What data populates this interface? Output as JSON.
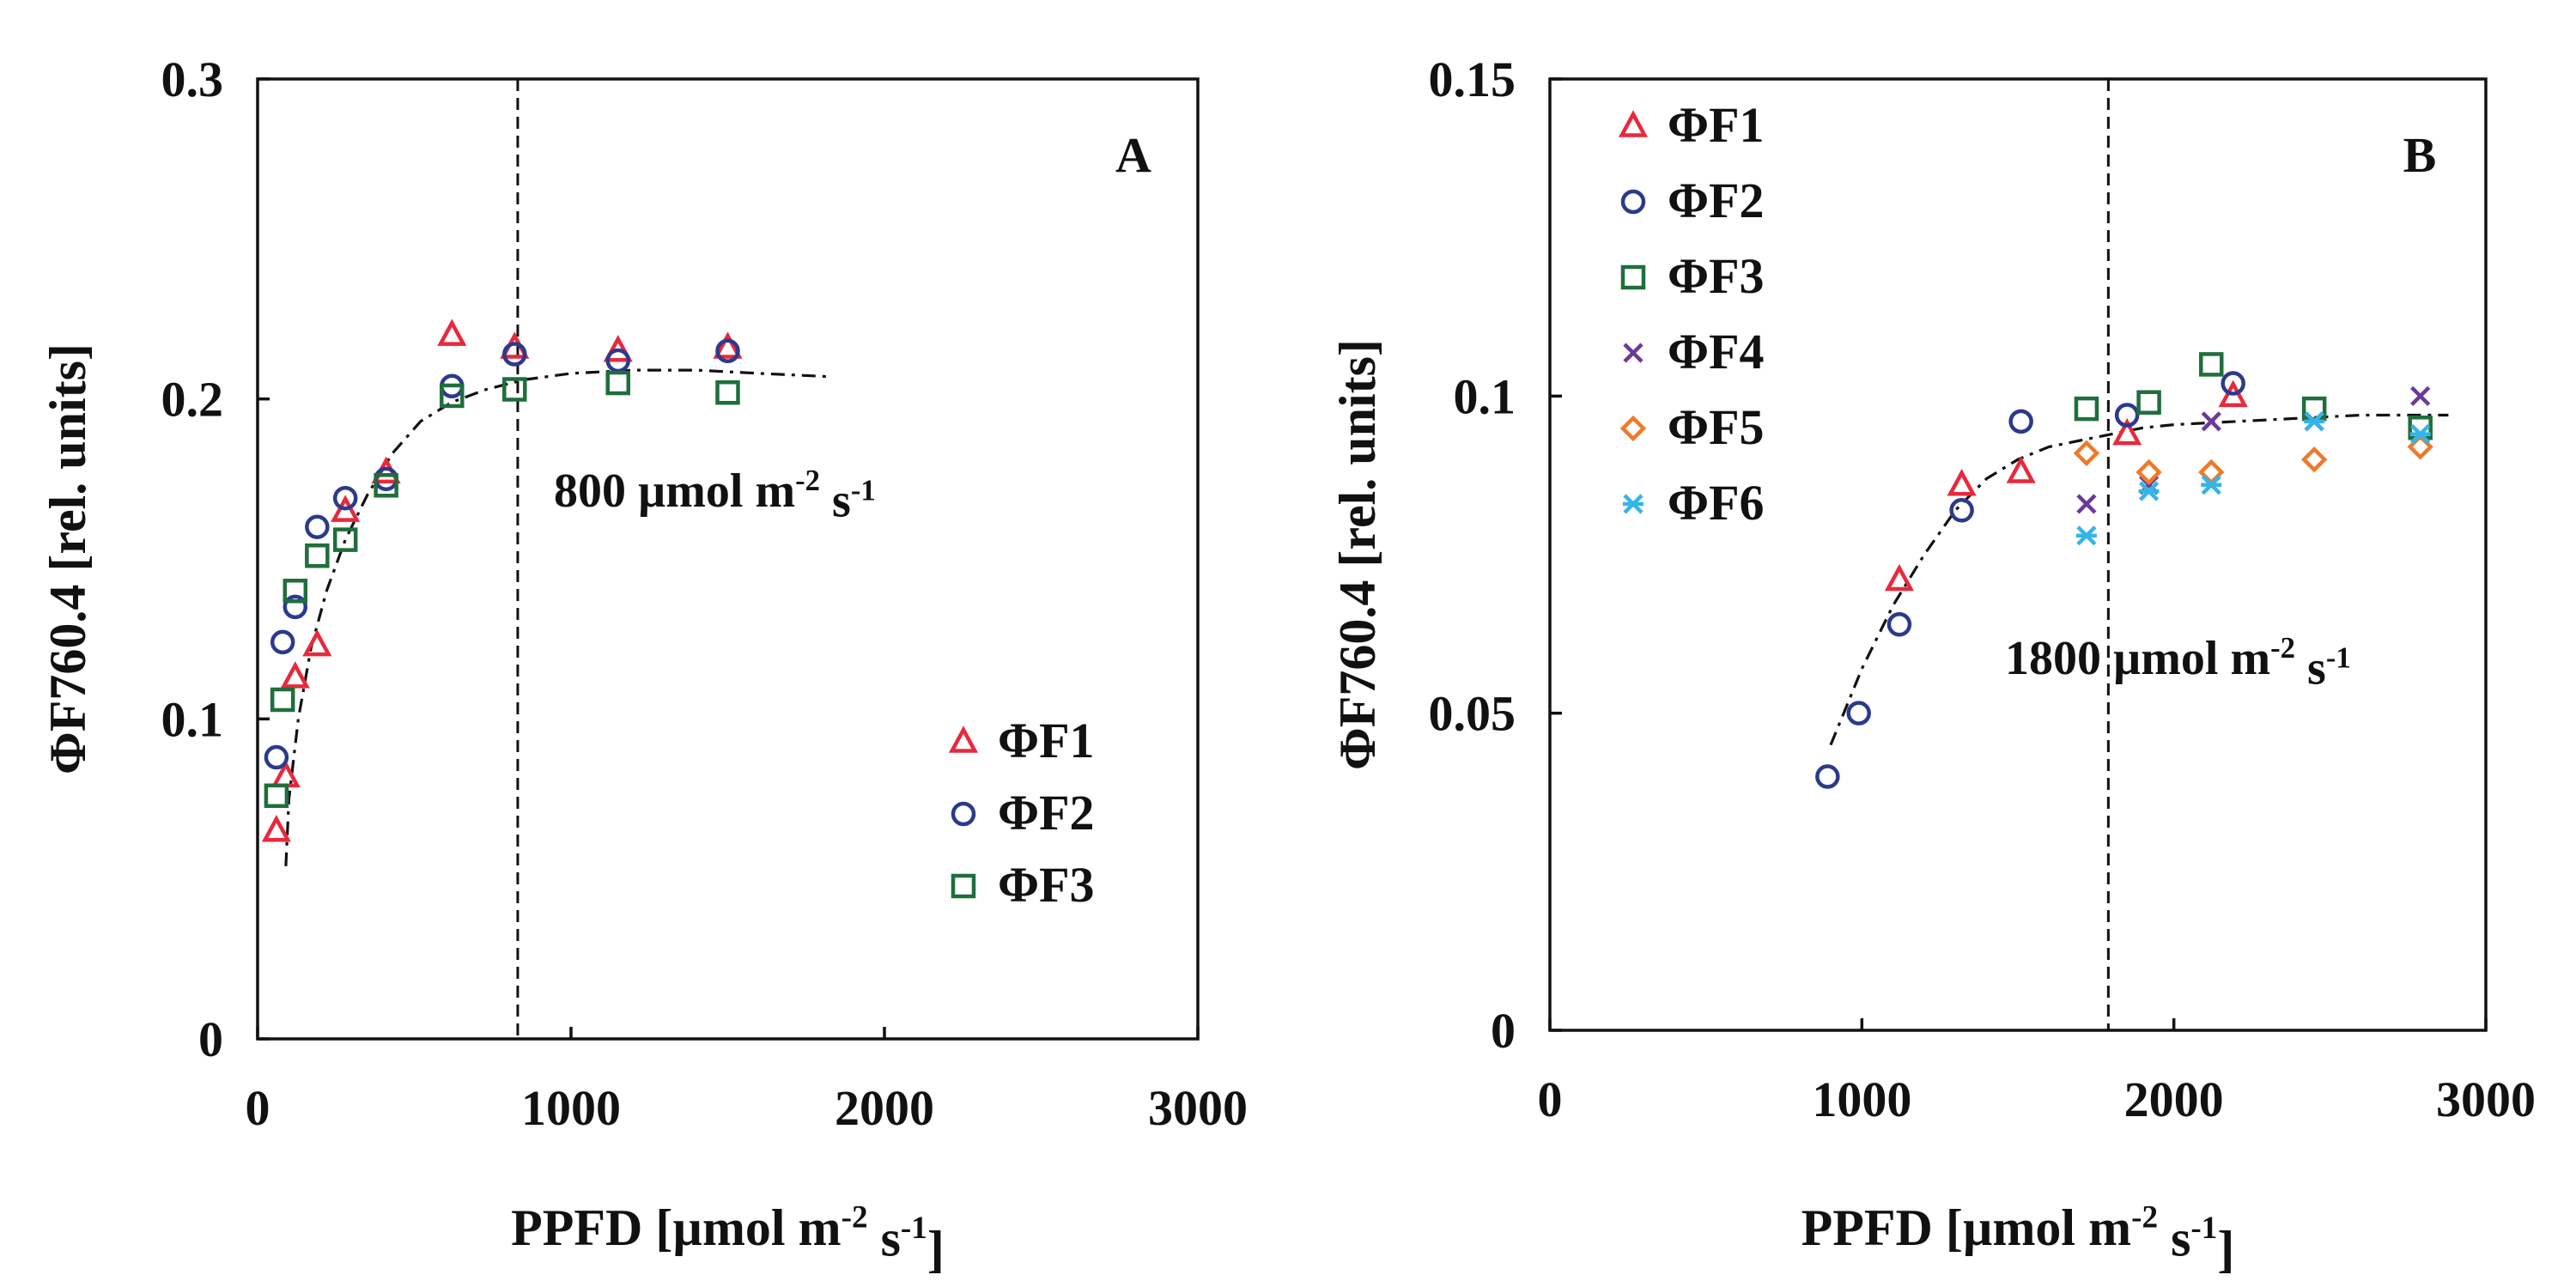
{
  "chart_data": [
    {
      "type": "scatter",
      "panel_label": "A",
      "xlabel": "PPFD [µmol m-2 s-1]",
      "xlabel_parts": [
        "PPFD [µmol m",
        "-2",
        " s",
        "-1",
        "]"
      ],
      "ylabel": "ΦF760.4 [rel. units]",
      "xlim": [
        0,
        3000
      ],
      "ylim": [
        0,
        0.3
      ],
      "xticks": [
        0,
        1000,
        2000,
        3000
      ],
      "xtick_labels": [
        "0",
        "1000",
        "2000",
        "3000"
      ],
      "yticks": [
        0,
        0.1,
        0.2,
        0.3
      ],
      "ytick_labels": [
        "0",
        "0.1",
        "0.2",
        "0.3"
      ],
      "vline": 830,
      "annotation": {
        "text": "800 µmol m-2 s-1",
        "parts": [
          "800 µmol m",
          "-2",
          " s",
          "-1"
        ]
      },
      "legend_position": "bottom-right",
      "fit": {
        "x": [
          90,
          100,
          130,
          170,
          220,
          280,
          350,
          430,
          520,
          620,
          730,
          850,
          1000,
          1200,
          1400,
          1600,
          1820
        ],
        "y": [
          0.054,
          0.075,
          0.1,
          0.122,
          0.14,
          0.156,
          0.17,
          0.183,
          0.193,
          0.199,
          0.203,
          0.206,
          0.208,
          0.209,
          0.209,
          0.208,
          0.207
        ]
      },
      "series": [
        {
          "name": "ΦF1",
          "marker": "triangle",
          "color": "#e8293d",
          "x": [
            60,
            90,
            120,
            190,
            280,
            410,
            620,
            820,
            1150,
            1500
          ],
          "y": [
            0.065,
            0.082,
            0.113,
            0.123,
            0.165,
            0.177,
            0.22,
            0.216,
            0.215,
            0.216
          ]
        },
        {
          "name": "ΦF2",
          "marker": "circle",
          "color": "#2b3a8c",
          "x": [
            60,
            80,
            120,
            190,
            280,
            410,
            620,
            820,
            1150,
            1500
          ],
          "y": [
            0.088,
            0.124,
            0.135,
            0.16,
            0.169,
            0.175,
            0.204,
            0.214,
            0.212,
            0.215
          ]
        },
        {
          "name": "ΦF3",
          "marker": "square",
          "color": "#1f6e3c",
          "x": [
            60,
            80,
            120,
            190,
            280,
            410,
            620,
            820,
            1150,
            1500
          ],
          "y": [
            0.076,
            0.106,
            0.14,
            0.151,
            0.156,
            0.173,
            0.201,
            0.203,
            0.205,
            0.202
          ]
        }
      ]
    },
    {
      "type": "scatter",
      "panel_label": "B",
      "xlabel": "PPFD [µmol m-2 s-1]",
      "xlabel_parts": [
        "PPFD [µmol m",
        "-2",
        " s",
        "-1",
        "]"
      ],
      "ylabel": "ΦF760.4 [rel. units]",
      "xlim": [
        0,
        3000
      ],
      "ylim": [
        0,
        0.15
      ],
      "xticks": [
        0,
        1000,
        2000,
        3000
      ],
      "xtick_labels": [
        "0",
        "1000",
        "2000",
        "3000"
      ],
      "yticks": [
        0,
        0.05,
        0.1,
        0.15
      ],
      "ytick_labels": [
        "0",
        "0.05",
        "0.1",
        "0.15"
      ],
      "vline": 1790,
      "annotation": {
        "text": "1800 µmol m-2 s-1",
        "parts": [
          "1800 µmol m",
          "-2",
          " s",
          "-1"
        ]
      },
      "legend_position": "top-left",
      "fit": {
        "x": [
          900,
          950,
          1000,
          1100,
          1200,
          1300,
          1400,
          1500,
          1600,
          1700,
          1800,
          1900,
          2000,
          2200,
          2400,
          2600,
          2800,
          2880
        ],
        "y": [
          0.045,
          0.051,
          0.057,
          0.067,
          0.075,
          0.082,
          0.087,
          0.09,
          0.092,
          0.093,
          0.094,
          0.095,
          0.0955,
          0.096,
          0.0965,
          0.097,
          0.097,
          0.097
        ]
      },
      "series": [
        {
          "name": "ΦF1",
          "marker": "triangle",
          "color": "#e8293d",
          "x": [
            1120,
            1320,
            1510,
            1850,
            2190
          ],
          "y": [
            0.071,
            0.086,
            0.088,
            0.094,
            0.1
          ]
        },
        {
          "name": "ΦF2",
          "marker": "circle",
          "color": "#2b3a8c",
          "x": [
            890,
            990,
            1120,
            1320,
            1510,
            1850,
            2190
          ],
          "y": [
            0.04,
            0.05,
            0.064,
            0.082,
            0.096,
            0.097,
            0.102
          ]
        },
        {
          "name": "ΦF3",
          "marker": "square",
          "color": "#1f6e3c",
          "x": [
            1720,
            1920,
            2120,
            2450,
            2790
          ],
          "y": [
            0.098,
            0.099,
            0.105,
            0.098,
            0.095
          ]
        },
        {
          "name": "ΦF4",
          "marker": "x",
          "color": "#6a3a9a",
          "x": [
            1720,
            1920,
            2120,
            2450,
            2790
          ],
          "y": [
            0.083,
            0.086,
            0.096,
            0.096,
            0.1
          ]
        },
        {
          "name": "ΦF5",
          "marker": "diamond",
          "color": "#ee7a2a",
          "x": [
            1720,
            1920,
            2120,
            2450,
            2790
          ],
          "y": [
            0.091,
            0.088,
            0.088,
            0.09,
            0.092
          ]
        },
        {
          "name": "ΦF6",
          "marker": "asterisk",
          "color": "#35b4e8",
          "x": [
            1720,
            1920,
            2120,
            2450,
            2790
          ],
          "y": [
            0.078,
            0.085,
            0.086,
            0.096,
            0.094
          ]
        }
      ]
    }
  ]
}
